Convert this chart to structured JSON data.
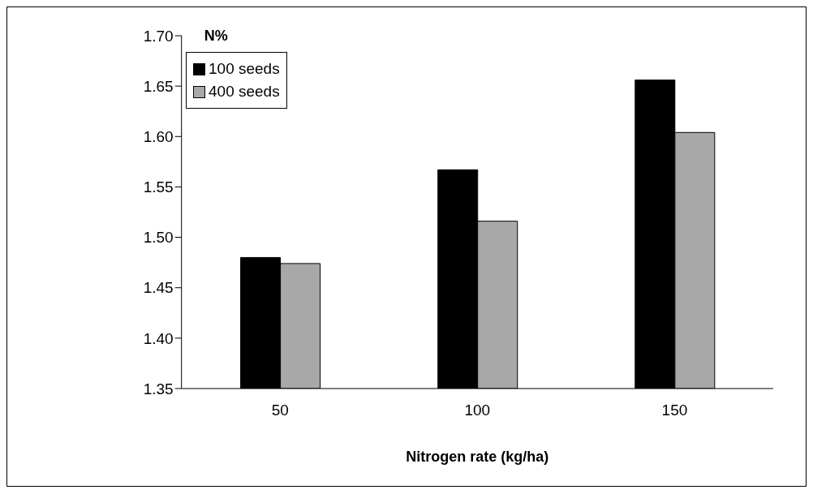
{
  "chart_data": {
    "type": "bar",
    "xlabel": "Nitrogen rate (kg/ha)",
    "ylabel": "N%",
    "categories": [
      "50",
      "100",
      "150"
    ],
    "series": [
      {
        "name": "100 seeds",
        "color": "#000000",
        "values": [
          1.48,
          1.567,
          1.656
        ]
      },
      {
        "name": "400 seeds",
        "color": "#a8a8a8",
        "values": [
          1.474,
          1.516,
          1.604
        ]
      }
    ],
    "ylim": [
      1.35,
      1.7
    ],
    "yticks": [
      {
        "value": 1.35,
        "label": "1.35"
      },
      {
        "value": 1.4,
        "label": "1.40"
      },
      {
        "value": 1.45,
        "label": "1.45"
      },
      {
        "value": 1.5,
        "label": "1.50"
      },
      {
        "value": 1.55,
        "label": "1.55"
      },
      {
        "value": 1.6,
        "label": "1.60"
      },
      {
        "value": 1.65,
        "label": "1.65"
      },
      {
        "value": 1.7,
        "label": "1.70"
      }
    ],
    "grid": false,
    "legend": "top left"
  }
}
